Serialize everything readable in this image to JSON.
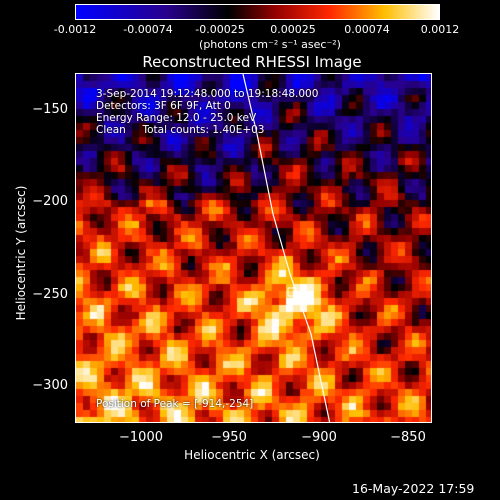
{
  "colorbar": {
    "ticks": [
      "-0.0012",
      "-0.00074",
      "-0.00025",
      "0.00025",
      "0.00074",
      "0.0012"
    ],
    "units": "(photons cm⁻² s⁻¹ asec⁻²)"
  },
  "plot": {
    "title": "Reconstructed RHESSI Image",
    "info": {
      "line1": "3-Sep-2014 19:12:48.000 to 19:18:48.000",
      "line2": "Detectors: 3F 6F 9F, Att 0",
      "line3": "Energy Range: 12.0 - 25.0 keV",
      "line4": "Clean     Total counts: 1.40E+03"
    },
    "peak_label": "Position of Peak = [-914,-254]",
    "xlabel": "Heliocentric X (arcsec)",
    "ylabel": "Heliocentric Y (arcsec)",
    "xticks": [
      "−1000",
      "−950",
      "−900",
      "−850"
    ],
    "yticks": [
      "−150",
      "−200",
      "−250",
      "−300"
    ]
  },
  "footer": {
    "date": "16-May-2022 17:59"
  }
}
